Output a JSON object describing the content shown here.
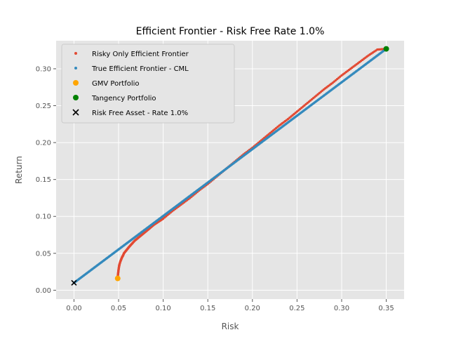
{
  "chart_data": {
    "type": "scatter",
    "title": "Efficient Frontier - Risk Free Rate 1.0%",
    "xlabel": "Risk",
    "ylabel": "Return",
    "xlim": [
      -0.02,
      0.37
    ],
    "ylim": [
      -0.012,
      0.338
    ],
    "xticks": [
      0.0,
      0.05,
      0.1,
      0.15,
      0.2,
      0.25,
      0.3,
      0.35
    ],
    "xtick_labels": [
      "0.00",
      "0.05",
      "0.10",
      "0.15",
      "0.20",
      "0.25",
      "0.30",
      "0.35"
    ],
    "yticks": [
      0.0,
      0.05,
      0.1,
      0.15,
      0.2,
      0.25,
      0.3
    ],
    "ytick_labels": [
      "0.00",
      "0.05",
      "0.10",
      "0.15",
      "0.20",
      "0.25",
      "0.30"
    ],
    "grid": true,
    "legend_position": "top-left",
    "series": [
      {
        "name": "Risky Only Efficient Frontier",
        "marker": "dot",
        "color": "#E24A33",
        "x": [
          0.049,
          0.0492,
          0.0496,
          0.05,
          0.0505,
          0.051,
          0.052,
          0.053,
          0.054,
          0.055,
          0.056,
          0.058,
          0.06,
          0.062,
          0.065,
          0.068,
          0.071,
          0.075,
          0.08,
          0.085,
          0.09,
          0.095,
          0.1,
          0.11,
          0.12,
          0.13,
          0.14,
          0.15,
          0.16,
          0.17,
          0.18,
          0.19,
          0.2,
          0.21,
          0.22,
          0.23,
          0.24,
          0.25,
          0.26,
          0.27,
          0.28,
          0.29,
          0.3,
          0.31,
          0.32,
          0.33,
          0.34,
          0.35
        ],
        "y": [
          0.016,
          0.02,
          0.024,
          0.028,
          0.032,
          0.035,
          0.039,
          0.042,
          0.045,
          0.047,
          0.05,
          0.053,
          0.056,
          0.059,
          0.063,
          0.067,
          0.07,
          0.074,
          0.079,
          0.084,
          0.089,
          0.093,
          0.097,
          0.107,
          0.116,
          0.125,
          0.135,
          0.144,
          0.154,
          0.164,
          0.174,
          0.184,
          0.193,
          0.203,
          0.213,
          0.223,
          0.232,
          0.242,
          0.252,
          0.262,
          0.272,
          0.281,
          0.291,
          0.3,
          0.309,
          0.318,
          0.326,
          0.327
        ]
      },
      {
        "name": "True Efficient Frontier - CML",
        "marker": "dot",
        "color": "#348ABD",
        "x": [
          0.0,
          0.35
        ],
        "y": [
          0.01,
          0.327
        ]
      },
      {
        "name": "GMV Portfolio",
        "marker": "circle",
        "color": "#FFA500",
        "x": [
          0.049
        ],
        "y": [
          0.016
        ]
      },
      {
        "name": "Tangency Portfolio",
        "marker": "circle",
        "color": "#008000",
        "x": [
          0.35
        ],
        "y": [
          0.327
        ]
      },
      {
        "name": "Risk Free Asset - Rate 1.0%",
        "marker": "x",
        "color": "#000000",
        "x": [
          0.0
        ],
        "y": [
          0.01
        ]
      }
    ]
  }
}
